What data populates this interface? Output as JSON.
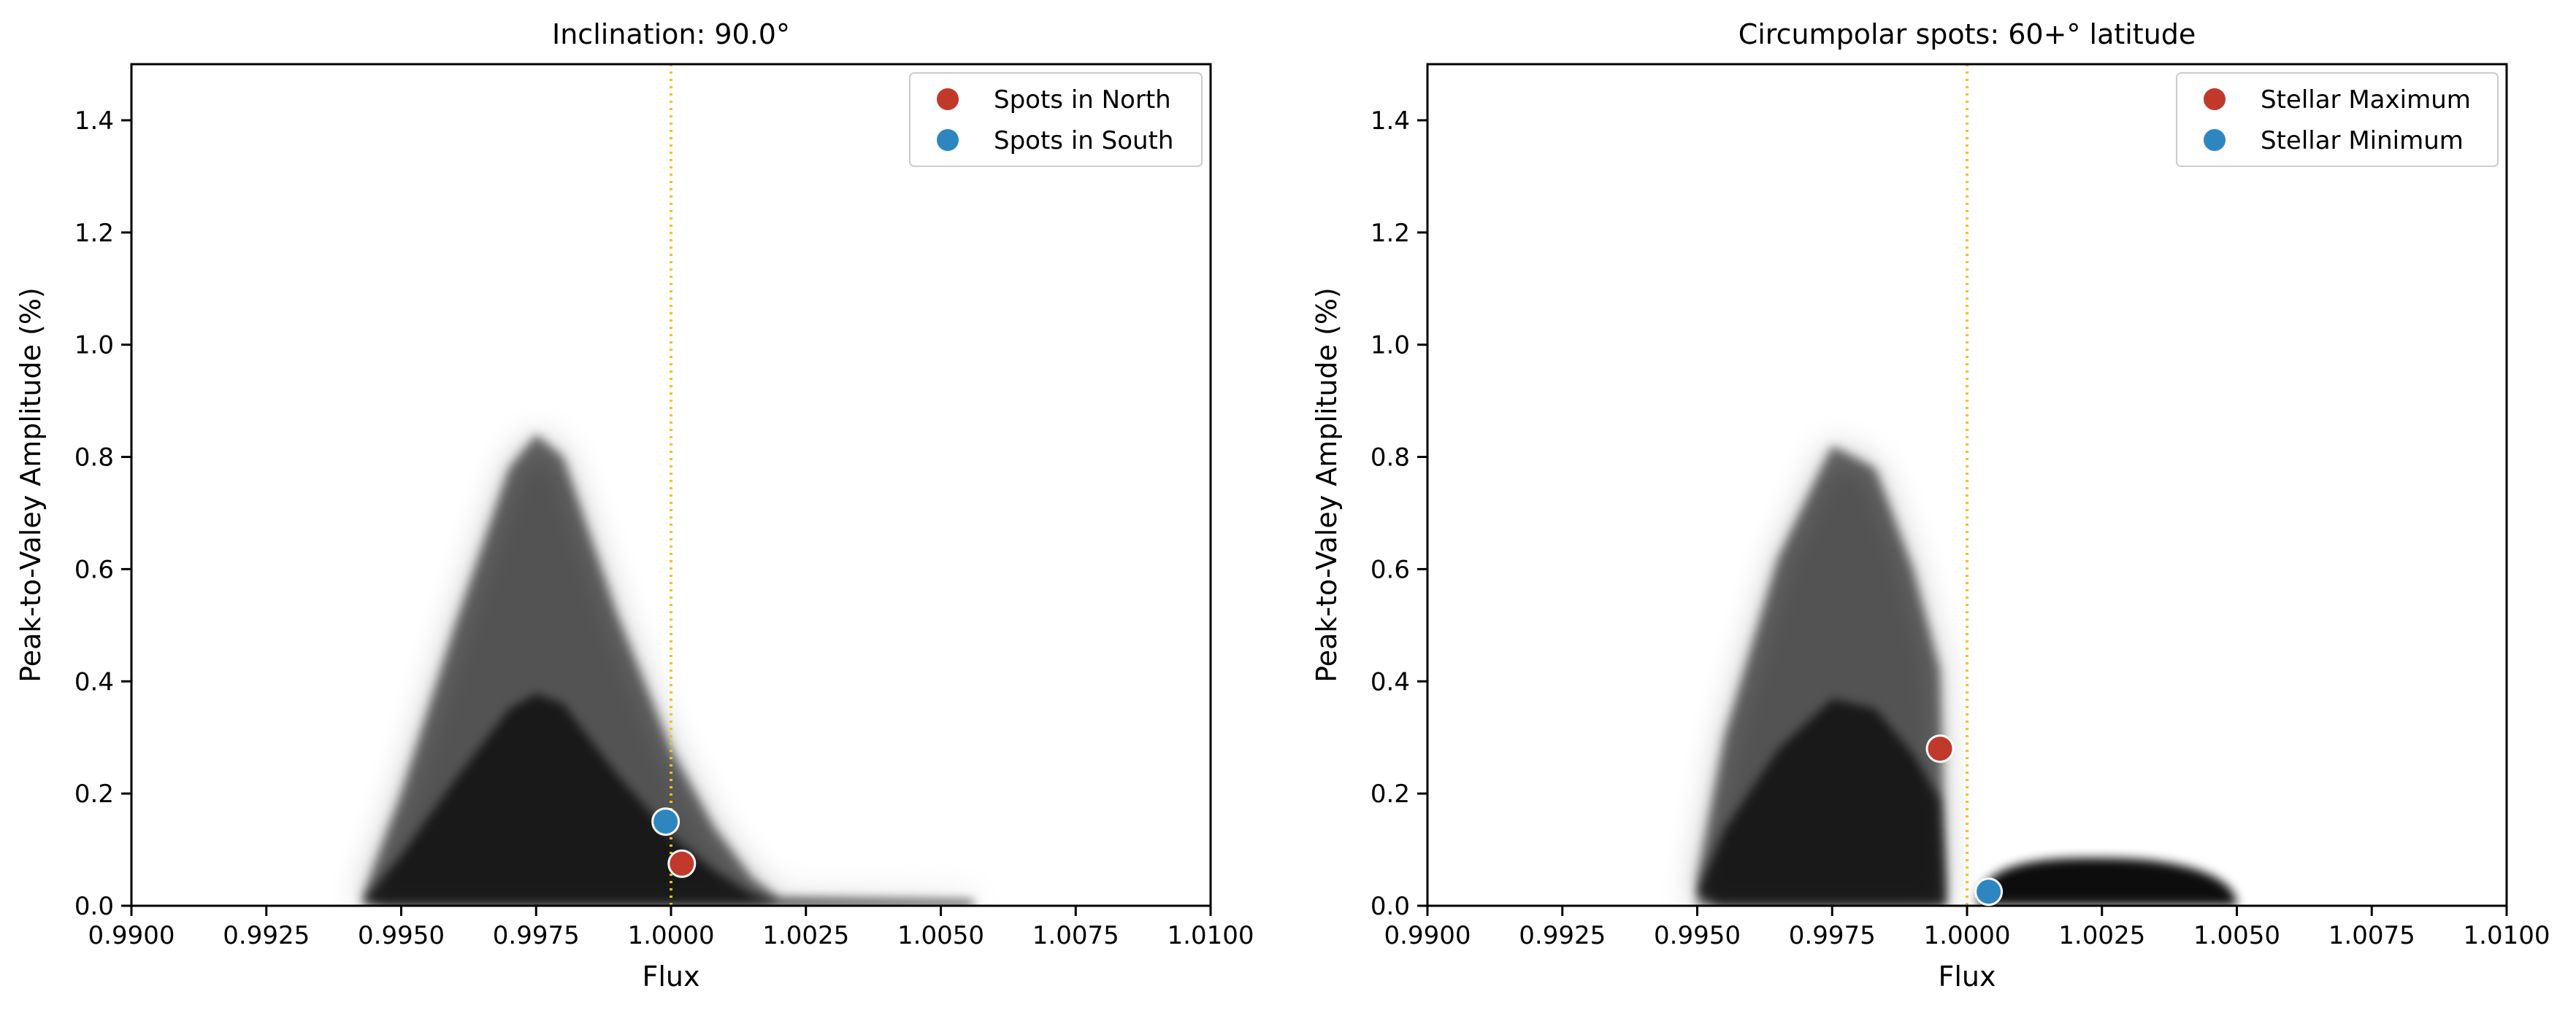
{
  "chart_data": [
    {
      "type": "scatter",
      "title": "Inclination: 90.0$^\\circ$",
      "title_display": "Inclination: 90.0°",
      "xlabel": "Flux",
      "ylabel": "Peak-to-Valey Amplitude (%)",
      "xlim": [
        0.99,
        1.01
      ],
      "ylim": [
        0.0,
        1.5
      ],
      "x_ticks": [
        0.99,
        0.9925,
        0.995,
        0.9975,
        1.0,
        1.0025,
        1.005,
        1.0075,
        1.01
      ],
      "x_tick_labels": [
        "0.9900",
        "0.9925",
        "0.9950",
        "0.9975",
        "1.0000",
        "1.0025",
        "1.0050",
        "1.0075",
        "1.0100"
      ],
      "y_ticks": [
        0.0,
        0.2,
        0.4,
        0.6,
        0.8,
        1.0,
        1.2,
        1.4
      ],
      "y_tick_labels": [
        "0.0",
        "0.2",
        "0.4",
        "0.6",
        "0.8",
        "1.0",
        "1.2",
        "1.4"
      ],
      "grid": false,
      "reference_line": {
        "x": 1.0,
        "style": "dotted",
        "color": "#FFC000"
      },
      "background_cloud": {
        "color": "#000000",
        "envelope": [
          {
            "x": 0.9943,
            "y_max": 0.02
          },
          {
            "x": 0.995,
            "y_max": 0.2
          },
          {
            "x": 0.996,
            "y_max": 0.5
          },
          {
            "x": 0.997,
            "y_max": 0.78
          },
          {
            "x": 0.9975,
            "y_max": 0.84
          },
          {
            "x": 0.998,
            "y_max": 0.8
          },
          {
            "x": 0.999,
            "y_max": 0.52
          },
          {
            "x": 1.0,
            "y_max": 0.28
          },
          {
            "x": 1.0008,
            "y_max": 0.14
          },
          {
            "x": 1.0015,
            "y_max": 0.05
          },
          {
            "x": 1.002,
            "y_max": 0.015
          },
          {
            "x": 1.0056,
            "y_max": 0.01
          }
        ]
      },
      "legend_position": "upper right",
      "legend": [
        {
          "label": "Spots in North",
          "color": "#C0392B"
        },
        {
          "label": "Spots in South",
          "color": "#2E86C1"
        }
      ],
      "series": [
        {
          "name": "Spots in North",
          "color": "#C0392B",
          "points": [
            {
              "x": 1.0002,
              "y": 0.075
            }
          ]
        },
        {
          "name": "Spots in South",
          "color": "#2E86C1",
          "points": [
            {
              "x": 0.9999,
              "y": 0.15
            }
          ]
        }
      ]
    },
    {
      "type": "scatter",
      "title": "Circumpolar spots: 60+$^\\circ$ latitude",
      "title_display": "Circumpolar spots: 60+° latitude",
      "xlabel": "Flux",
      "ylabel": "Peak-to-Valey Amplitude (%)",
      "xlim": [
        0.99,
        1.01
      ],
      "ylim": [
        0.0,
        1.5
      ],
      "x_ticks": [
        0.99,
        0.9925,
        0.995,
        0.9975,
        1.0,
        1.0025,
        1.005,
        1.0075,
        1.01
      ],
      "x_tick_labels": [
        "0.9900",
        "0.9925",
        "0.9950",
        "0.9975",
        "1.0000",
        "1.0025",
        "1.0050",
        "1.0075",
        "1.0100"
      ],
      "y_ticks": [
        0.0,
        0.2,
        0.4,
        0.6,
        0.8,
        1.0,
        1.2,
        1.4
      ],
      "y_tick_labels": [
        "0.0",
        "0.2",
        "0.4",
        "0.6",
        "0.8",
        "1.0",
        "1.2",
        "1.4"
      ],
      "grid": false,
      "reference_line": {
        "x": 1.0,
        "style": "dotted",
        "color": "#FFC000"
      },
      "background_cloud": {
        "color": "#000000",
        "envelope": [
          {
            "x": 0.995,
            "y_max": 0.05
          },
          {
            "x": 0.9955,
            "y_max": 0.3
          },
          {
            "x": 0.9965,
            "y_max": 0.62
          },
          {
            "x": 0.9975,
            "y_max": 0.82
          },
          {
            "x": 0.9983,
            "y_max": 0.78
          },
          {
            "x": 0.999,
            "y_max": 0.6
          },
          {
            "x": 0.9995,
            "y_max": 0.42
          },
          {
            "x": 0.9996,
            "y_max": 0.05
          }
        ],
        "second_lobe": {
          "x_range": [
            1.0002,
            1.005
          ],
          "y_max": 0.085
        }
      },
      "legend_position": "upper right",
      "legend": [
        {
          "label": "Stellar Maximum",
          "color": "#C0392B"
        },
        {
          "label": "Stellar Minimum",
          "color": "#2E86C1"
        }
      ],
      "series": [
        {
          "name": "Stellar Maximum",
          "color": "#C0392B",
          "points": [
            {
              "x": 0.9995,
              "y": 0.28
            }
          ]
        },
        {
          "name": "Stellar Minimum",
          "color": "#2E86C1",
          "points": [
            {
              "x": 1.0004,
              "y": 0.025
            }
          ]
        }
      ]
    }
  ]
}
